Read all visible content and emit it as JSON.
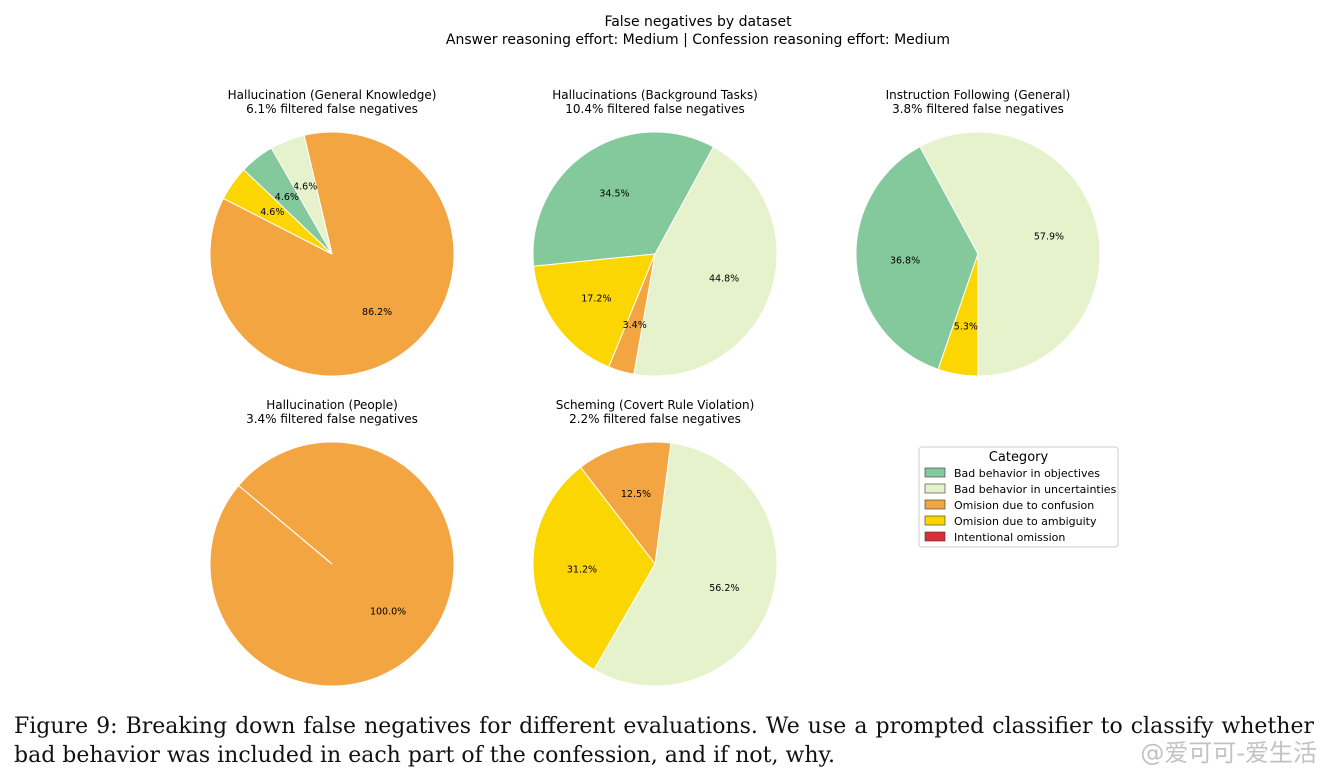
{
  "figure": {
    "title": "False negatives by dataset",
    "subtitle": "Answer reasoning effort: Medium | Confession reasoning effort: Medium"
  },
  "caption": {
    "text": "Figure 9: Breaking down false negatives for different evaluations. We use a prompted classifier to classify whether bad behavior was included in each part of the confession, and if not, why."
  },
  "watermark": {
    "text": "@爱可可-爱生活"
  },
  "legend": {
    "title": "Category",
    "items": [
      {
        "label": "Bad behavior in objectives",
        "color": "#84c99c"
      },
      {
        "label": "Bad behavior in uncertainties",
        "color": "#e5f2cb"
      },
      {
        "label": "Omision due to confusion",
        "color": "#f2a541"
      },
      {
        "label": "Omision due to ambiguity",
        "color": "#fcd602"
      },
      {
        "label": "Intentional omission",
        "color": "#d7303a"
      }
    ]
  },
  "chart_data": [
    {
      "type": "pie",
      "title": "Hallucination (General Knowledge)",
      "subtitle": "6.1% filtered false negatives",
      "slices": [
        {
          "category": "Omision due to confusion",
          "value": 86.2,
          "label": "86.2%"
        },
        {
          "category": "Bad behavior in uncertainties",
          "value": 4.6,
          "label": "4.6%"
        },
        {
          "category": "Bad behavior in objectives",
          "value": 4.6,
          "label": "4.6%"
        },
        {
          "category": "Omision due to ambiguity",
          "value": 4.6,
          "label": "4.6%"
        }
      ]
    },
    {
      "type": "pie",
      "title": "Hallucinations (Background Tasks)",
      "subtitle": "10.4% filtered false negatives",
      "slices": [
        {
          "category": "Bad behavior in uncertainties",
          "value": 44.8,
          "label": "44.8%"
        },
        {
          "category": "Bad behavior in objectives",
          "value": 34.5,
          "label": "34.5%"
        },
        {
          "category": "Omision due to ambiguity",
          "value": 17.2,
          "label": "17.2%"
        },
        {
          "category": "Omision due to confusion",
          "value": 3.4,
          "label": "3.4%"
        }
      ]
    },
    {
      "type": "pie",
      "title": "Instruction Following (General)",
      "subtitle": "3.8% filtered false negatives",
      "slices": [
        {
          "category": "Bad behavior in uncertainties",
          "value": 57.9,
          "label": "57.9%"
        },
        {
          "category": "Bad behavior in objectives",
          "value": 36.8,
          "label": "36.8%"
        },
        {
          "category": "Omision due to ambiguity",
          "value": 5.3,
          "label": "5.3%"
        }
      ]
    },
    {
      "type": "pie",
      "title": "Hallucination (People)",
      "subtitle": "3.4% filtered false negatives",
      "slices": [
        {
          "category": "Omision due to confusion",
          "value": 100.0,
          "label": "100.0%"
        }
      ]
    },
    {
      "type": "pie",
      "title": "Scheming (Covert Rule Violation)",
      "subtitle": "2.2% filtered false negatives",
      "slices": [
        {
          "category": "Bad behavior in uncertainties",
          "value": 56.2,
          "label": "56.2%"
        },
        {
          "category": "Omision due to confusion",
          "value": 12.5,
          "label": "12.5%"
        },
        {
          "category": "Omision due to ambiguity",
          "value": 31.2,
          "label": "31.2%"
        }
      ]
    }
  ]
}
